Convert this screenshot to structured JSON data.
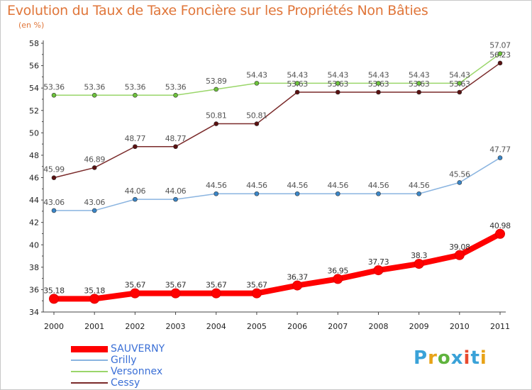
{
  "header": {
    "title": "Evolution du Taux de Taxe Foncière sur les Propriétés Non Bâties",
    "unit": "(en %)"
  },
  "logo": {
    "text": "Proxiti",
    "letter_colors": [
      "#3aa2d8",
      "#e8a317",
      "#5fb33d",
      "#3aa2d8",
      "#e84a2f",
      "#3aa2d8",
      "#e8a317"
    ]
  },
  "chart_data": {
    "type": "line",
    "title": "Evolution du Taux de Taxe Foncière sur les Propriétés Non Bâties",
    "ylabel": "(en %)",
    "xlabel": "",
    "x": [
      "2000",
      "2001",
      "2002",
      "2003",
      "2004",
      "2005",
      "2006",
      "2007",
      "2008",
      "2009",
      "2010",
      "2011"
    ],
    "ylim": [
      34,
      58
    ],
    "yticks": [
      34,
      36,
      38,
      40,
      42,
      44,
      46,
      48,
      50,
      52,
      54,
      56,
      58
    ],
    "grid": false,
    "legend_position": "bottom-left",
    "series": [
      {
        "name": "SAUVERNY",
        "color": "#ff0000",
        "emphasis": true,
        "values": [
          35.18,
          35.18,
          35.67,
          35.67,
          35.67,
          35.67,
          36.37,
          36.95,
          37.73,
          38.3,
          39.08,
          40.98
        ],
        "labels": [
          "35.18",
          "35.18",
          "35.67",
          "35.67",
          "35.67",
          "35.67",
          "36.37",
          "36.95",
          "37.73",
          "38.3",
          "39.08",
          "40.98"
        ]
      },
      {
        "name": "Grilly",
        "color": "#8ab4e0",
        "marker": "#3a86c8",
        "values": [
          43.06,
          43.06,
          44.06,
          44.06,
          44.56,
          44.56,
          44.56,
          44.56,
          44.56,
          44.56,
          45.56,
          47.77
        ],
        "labels": [
          "43.06",
          "43.06",
          "44.06",
          "44.06",
          "44.56",
          "44.56",
          "44.56",
          "44.56",
          "44.56",
          "44.56",
          "45.56",
          "47.77"
        ]
      },
      {
        "name": "Versonnex",
        "color": "#9ad66a",
        "marker": "#6cc23a",
        "values": [
          53.36,
          53.36,
          53.36,
          53.36,
          53.89,
          54.43,
          54.43,
          54.43,
          54.43,
          54.43,
          54.43,
          57.07
        ],
        "labels": [
          "53.36",
          "53.36",
          "53.36",
          "53.36",
          "53.89",
          "54.43",
          "54.43",
          "54.43",
          "54.43",
          "54.43",
          "54.43",
          "57.07"
        ]
      },
      {
        "name": "Cessy",
        "color": "#7a2a2a",
        "marker": "#5a1010",
        "values": [
          45.99,
          46.89,
          48.77,
          48.77,
          50.81,
          50.81,
          53.63,
          53.63,
          53.63,
          53.63,
          53.63,
          56.23
        ],
        "labels": [
          "45.99",
          "46.89",
          "48.77",
          "48.77",
          "50.81",
          "50.81",
          "53.63",
          "53.63",
          "53.63",
          "53.63",
          "53.63",
          "56.23"
        ]
      }
    ]
  }
}
